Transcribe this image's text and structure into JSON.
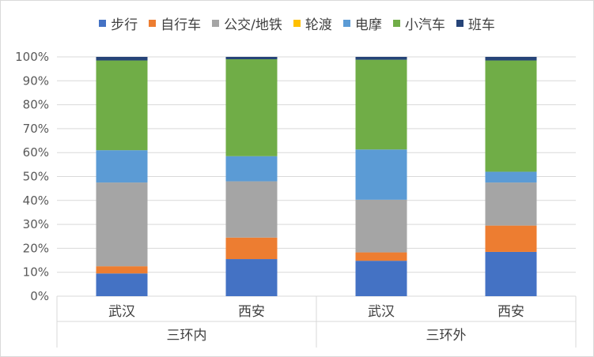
{
  "chart_data": {
    "type": "bar",
    "stacked": true,
    "categories": [
      {
        "label": "武汉",
        "group": "三环内"
      },
      {
        "label": "西安",
        "group": "三环内"
      },
      {
        "label": "武汉",
        "group": "三环外"
      },
      {
        "label": "西安",
        "group": "三环外"
      }
    ],
    "groups": [
      "三环内",
      "三环外"
    ],
    "series": [
      {
        "name": "步行",
        "color": "#4472C4",
        "values": [
          9.5,
          15.5,
          14.8,
          18.5
        ]
      },
      {
        "name": "自行车",
        "color": "#ED7D31",
        "values": [
          3.0,
          9.0,
          3.5,
          11.0
        ]
      },
      {
        "name": "公交/地铁",
        "color": "#A5A5A5",
        "values": [
          35.0,
          23.5,
          22.0,
          18.0
        ]
      },
      {
        "name": "轮渡",
        "color": "#FFC000",
        "values": [
          0.0,
          0.0,
          0.0,
          0.0
        ]
      },
      {
        "name": "电摩",
        "color": "#5B9BD5",
        "values": [
          13.5,
          10.5,
          21.0,
          4.5
        ]
      },
      {
        "name": "小汽车",
        "color": "#70AD47",
        "values": [
          37.5,
          40.5,
          37.5,
          46.5
        ]
      },
      {
        "name": "班车",
        "color": "#264478",
        "values": [
          1.5,
          1.0,
          1.2,
          1.5
        ]
      }
    ],
    "ylim": [
      0,
      100
    ],
    "yticks": [
      "0%",
      "10%",
      "20%",
      "30%",
      "40%",
      "50%",
      "60%",
      "70%",
      "80%",
      "90%",
      "100%"
    ],
    "grid": true,
    "legend": "top"
  }
}
